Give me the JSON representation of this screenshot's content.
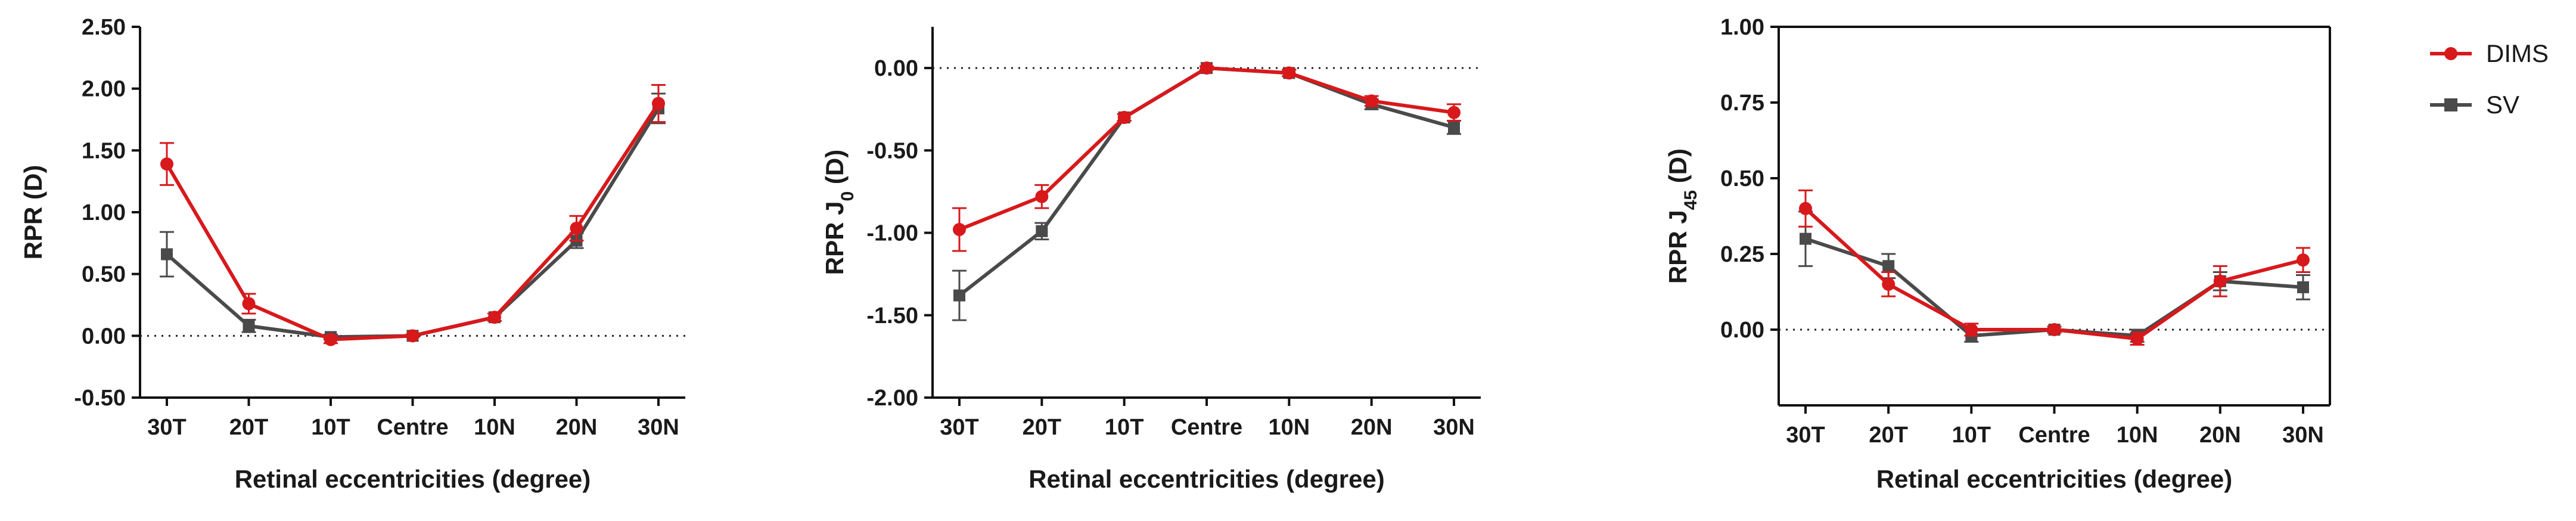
{
  "legend": [
    {
      "name": "DIMS",
      "color": "#d7191c",
      "marker": "circle"
    },
    {
      "name": "SV",
      "color": "#4a4a4a",
      "marker": "square"
    }
  ],
  "chart_data": [
    {
      "type": "line",
      "categories": [
        "30T",
        "20T",
        "10T",
        "Centre",
        "10N",
        "20N",
        "30N"
      ],
      "xlabel": "Retinal eccentricities (degree)",
      "ylabel": "RPR (D)",
      "ylim": [
        -0.5,
        2.5
      ],
      "yticks": [
        "2.50",
        "2.00",
        "1.50",
        "1.00",
        "0.50",
        "0.00",
        "-0.50"
      ],
      "reference_line": 0,
      "series": [
        {
          "name": "DIMS",
          "values": [
            1.39,
            0.26,
            -0.03,
            0.0,
            0.15,
            0.87,
            1.88
          ],
          "errors": [
            0.17,
            0.08,
            0.03,
            0.01,
            0.03,
            0.1,
            0.15
          ]
        },
        {
          "name": "SV",
          "values": [
            0.66,
            0.08,
            -0.01,
            0.0,
            0.15,
            0.77,
            1.84
          ],
          "errors": [
            0.18,
            0.05,
            0.02,
            0.01,
            0.03,
            0.06,
            0.12
          ]
        }
      ]
    },
    {
      "type": "line",
      "categories": [
        "30T",
        "20T",
        "10T",
        "Centre",
        "10N",
        "20N",
        "30N"
      ],
      "xlabel": "Retinal eccentricities (degree)",
      "ylabel": "RPR J0 (D)",
      "ylim": [
        -2.0,
        0.25
      ],
      "yticks": [
        "0.00",
        "-0.50",
        "-1.00",
        "-1.50",
        "-2.00"
      ],
      "reference_line": 0,
      "series": [
        {
          "name": "DIMS",
          "values": [
            -0.98,
            -0.78,
            -0.3,
            0.0,
            -0.03,
            -0.2,
            -0.27
          ],
          "errors": [
            0.13,
            0.07,
            0.02,
            0.01,
            0.02,
            0.03,
            0.05
          ]
        },
        {
          "name": "SV",
          "values": [
            -1.38,
            -0.99,
            -0.3,
            0.0,
            -0.03,
            -0.22,
            -0.36
          ],
          "errors": [
            0.15,
            0.05,
            0.02,
            0.01,
            0.02,
            0.03,
            0.04
          ]
        }
      ]
    },
    {
      "type": "line",
      "categories": [
        "30T",
        "20T",
        "10T",
        "Centre",
        "10N",
        "20N",
        "30N"
      ],
      "xlabel": "Retinal eccentricities (degree)",
      "ylabel": "RPR J45 (D)",
      "ylim": [
        -0.25,
        1.0
      ],
      "yticks": [
        "1.00",
        "0.75",
        "0.50",
        "0.25",
        "0.00"
      ],
      "reference_line": 0,
      "series": [
        {
          "name": "DIMS",
          "values": [
            0.4,
            0.15,
            0.0,
            0.0,
            -0.03,
            0.16,
            0.23
          ],
          "errors": [
            0.06,
            0.04,
            0.02,
            0.01,
            0.02,
            0.05,
            0.04
          ]
        },
        {
          "name": "SV",
          "values": [
            0.3,
            0.21,
            -0.02,
            0.0,
            -0.02,
            0.16,
            0.14
          ],
          "errors": [
            0.09,
            0.04,
            0.02,
            0.01,
            0.02,
            0.03,
            0.04
          ]
        }
      ]
    }
  ]
}
